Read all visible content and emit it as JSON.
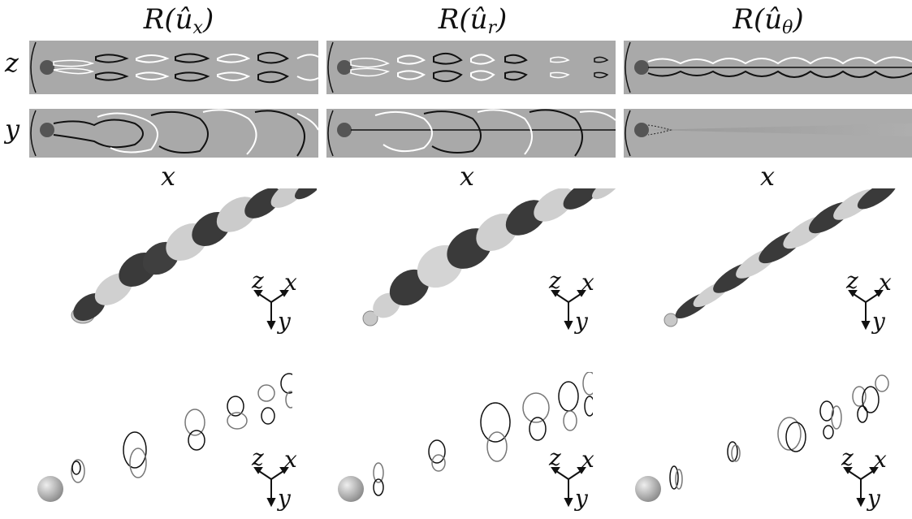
{
  "columns": [
    {
      "title_main": "R(û",
      "title_sub": "x",
      "title_close": ")"
    },
    {
      "title_main": "R(û",
      "title_sub": "r",
      "title_close": ")"
    },
    {
      "title_main": "R(û",
      "title_sub": "θ",
      "title_close": ")"
    }
  ],
  "row_labels": {
    "top": "z",
    "middle": "y"
  },
  "bottom_axis_label": "x",
  "triad": {
    "z": "z",
    "x": "x",
    "y": "y"
  },
  "colors": {
    "panel_gray": "#a9a9a9",
    "dark_contour": "#111111",
    "light_contour": "#ffffff",
    "iso_dark": "#3a3a3a",
    "iso_light": "#c8c8c8"
  }
}
